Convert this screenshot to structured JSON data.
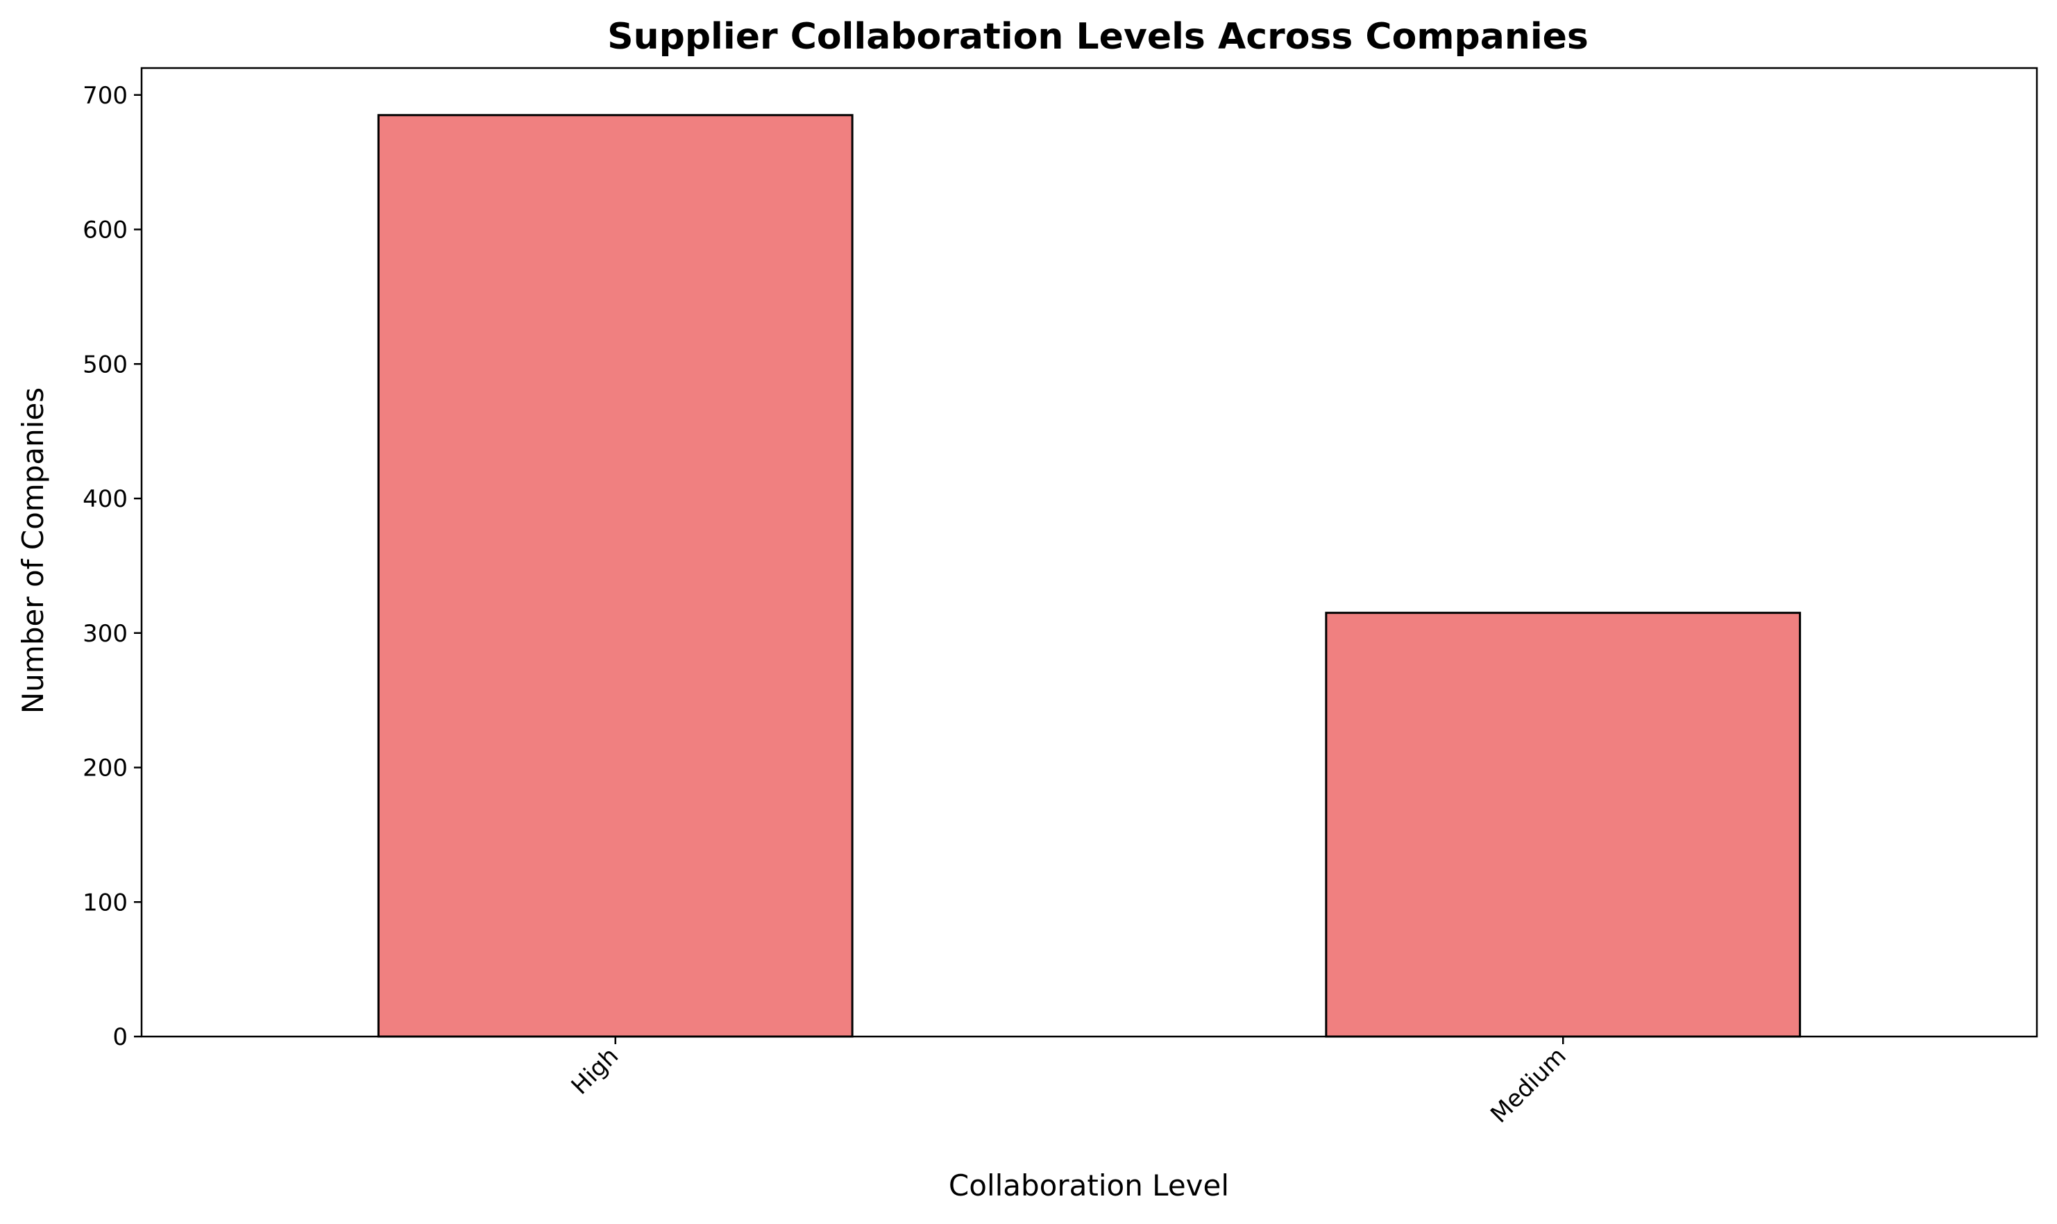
{
  "chart_data": {
    "type": "bar",
    "title": "Supplier Collaboration Levels Across Companies",
    "xlabel": "Collaboration Level",
    "ylabel": "Number of Companies",
    "categories": [
      "High",
      "Medium"
    ],
    "values": [
      685,
      315
    ],
    "ylim": [
      0,
      720
    ],
    "yticks": [
      0,
      100,
      200,
      300,
      400,
      500,
      600,
      700
    ],
    "xtick_rotation": "45deg",
    "bar_color": "#f08080",
    "edge_color": "#000000",
    "grid": false,
    "legend": "none"
  }
}
